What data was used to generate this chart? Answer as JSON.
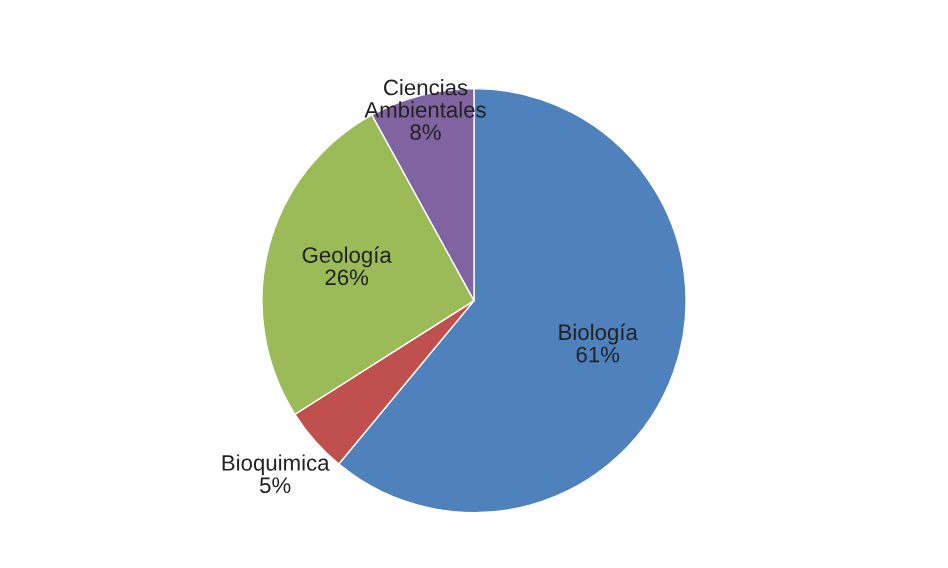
{
  "chart_data": {
    "type": "pie",
    "categories": [
      "Biología",
      "Bioquimica",
      "Geología",
      "Ciencias Ambientales"
    ],
    "values": [
      61,
      5,
      26,
      8
    ],
    "value_labels": [
      "61%",
      "5%",
      "26%",
      "8%"
    ],
    "colors": [
      "#4f81bd",
      "#c0504d",
      "#9bbb59",
      "#8064a2"
    ],
    "legend": false
  }
}
